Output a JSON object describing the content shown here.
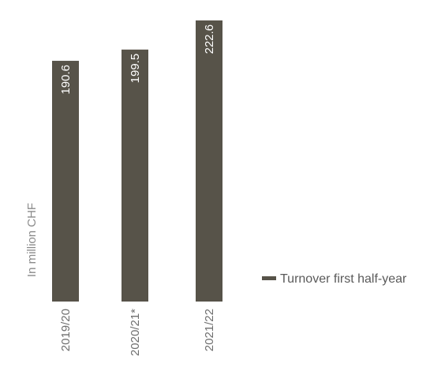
{
  "chart_data": {
    "type": "bar",
    "categories": [
      "2019/20",
      "2020/21*",
      "2021/22"
    ],
    "series": [
      {
        "name": "Turnover first half-year",
        "values": [
          190.6,
          199.5,
          222.6
        ],
        "color": "#575349"
      }
    ],
    "value_labels": [
      "190.6",
      "199.5",
      "222.6"
    ],
    "ylabel": "In million CHF",
    "title": "",
    "xlabel": "",
    "legend_position": "right",
    "grid": false,
    "colors": {
      "bar": "#575349",
      "value_label": "#ffffff",
      "tick_label": "#6e6e6e",
      "axis_label": "#8a8a8a",
      "legend_text": "#5a5a5a"
    }
  }
}
